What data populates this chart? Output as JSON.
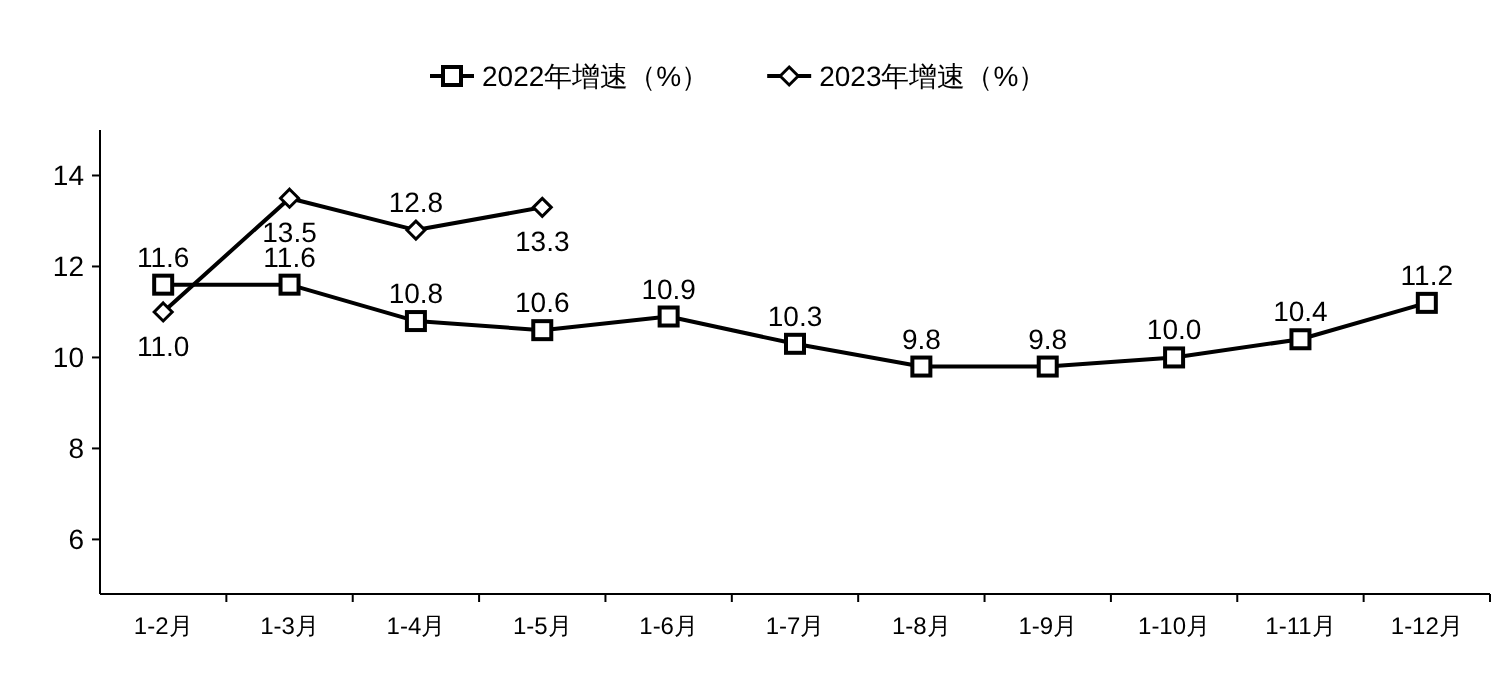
{
  "chart_data": {
    "type": "line",
    "categories": [
      "1-2月",
      "1-3月",
      "1-4月",
      "1-5月",
      "1-6月",
      "1-7月",
      "1-8月",
      "1-9月",
      "1-10月",
      "1-11月",
      "1-12月"
    ],
    "series": [
      {
        "name": "2022年增速（%）",
        "color": "#000000",
        "marker": "square",
        "values": [
          11.6,
          11.6,
          10.8,
          10.6,
          10.9,
          10.3,
          9.8,
          9.8,
          10.0,
          10.4,
          11.2
        ],
        "value_labels": [
          "11.6",
          "11.6",
          "10.8",
          "10.6",
          "10.9",
          "10.3",
          "9.8",
          "9.8",
          "10.0",
          "10.4",
          "11.2"
        ]
      },
      {
        "name": "2023年增速（%）",
        "color": "#000000",
        "marker": "diamond",
        "values": [
          11.0,
          13.5,
          12.8,
          13.3,
          null,
          null,
          null,
          null,
          null,
          null,
          null
        ],
        "value_labels": [
          "11.0",
          "13.5",
          "12.8",
          "13.3",
          null,
          null,
          null,
          null,
          null,
          null,
          null
        ]
      }
    ],
    "ylim": [
      4.8,
      15
    ],
    "yticks": [
      6,
      8,
      10,
      12,
      14
    ],
    "grid": false,
    "legend": "top",
    "line_style": "solid"
  }
}
